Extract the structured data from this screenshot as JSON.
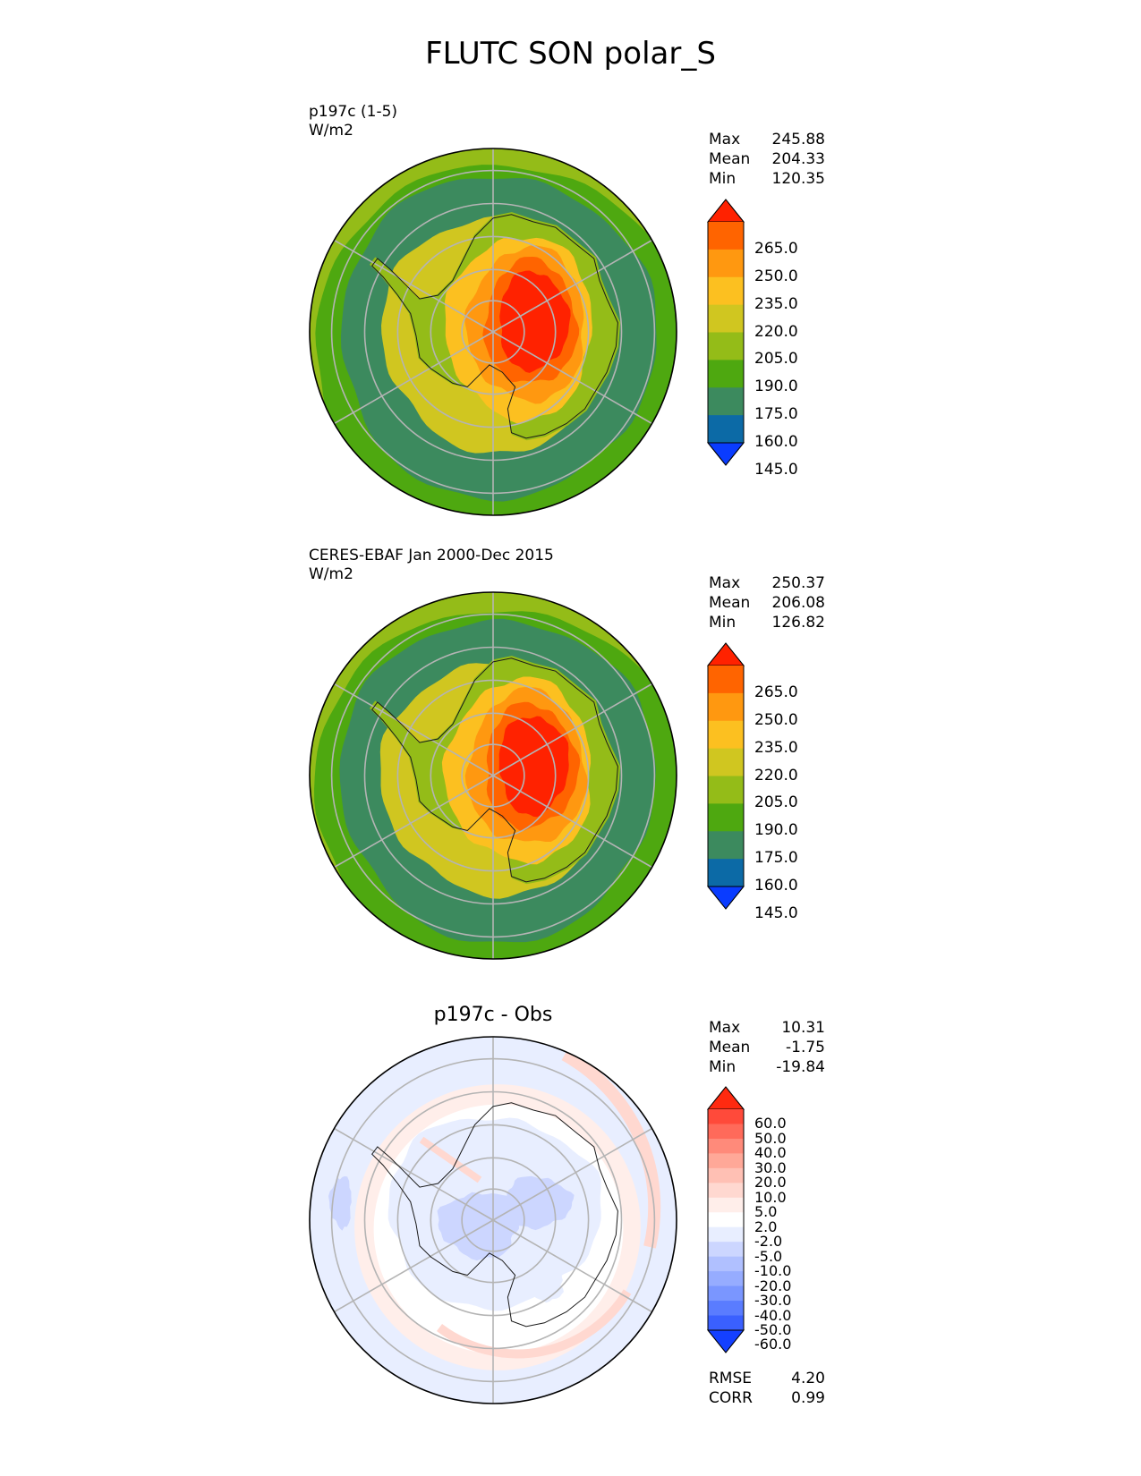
{
  "figure": {
    "title": "FLUTC SON polar_S"
  },
  "chart_data": [
    {
      "type": "heatmap",
      "projection": "south-polar-stereographic",
      "title_lines": [
        "p197c (1-5)",
        "W/m2"
      ],
      "stats": [
        {
          "label": "Max",
          "value": "245.88"
        },
        {
          "label": "Mean",
          "value": "204.33"
        },
        {
          "label": "Min",
          "value": "120.35"
        }
      ],
      "colorbar": {
        "ticks": [
          "265.0",
          "250.0",
          "235.0",
          "220.0",
          "205.0",
          "190.0",
          "175.0",
          "160.0",
          "145.0"
        ],
        "colors": [
          "#ff2200",
          "#ff6400",
          "#ff9810",
          "#fcc020",
          "#d0c620",
          "#94bc18",
          "#4ea810",
          "#3c8a5e",
          "#0c6aa6",
          "#0a3cff"
        ],
        "extend": "both"
      },
      "fields": {
        "ocean_north": 5,
        "ocean_south": 6,
        "rim": 7,
        "ice_margin": 4,
        "plateau": 1,
        "core": 0
      }
    },
    {
      "type": "heatmap",
      "projection": "south-polar-stereographic",
      "title_lines": [
        "CERES-EBAF Jan 2000-Dec 2015",
        "W/m2"
      ],
      "stats": [
        {
          "label": "Max",
          "value": "250.37"
        },
        {
          "label": "Mean",
          "value": "206.08"
        },
        {
          "label": "Min",
          "value": "126.82"
        }
      ],
      "colorbar": {
        "ticks": [
          "265.0",
          "250.0",
          "235.0",
          "220.0",
          "205.0",
          "190.0",
          "175.0",
          "160.0",
          "145.0"
        ],
        "colors": [
          "#ff2200",
          "#ff6400",
          "#ff9810",
          "#fcc020",
          "#d0c620",
          "#94bc18",
          "#4ea810",
          "#3c8a5e",
          "#0c6aa6",
          "#0a3cff"
        ],
        "extend": "both"
      },
      "fields": {
        "ocean_north": 5,
        "ocean_south": 6,
        "rim": 7,
        "ice_margin": 4,
        "plateau": 1,
        "core": 0
      }
    },
    {
      "type": "heatmap",
      "projection": "south-polar-stereographic",
      "title": "p197c - Obs",
      "stats": [
        {
          "label": "Max",
          "value": "10.31"
        },
        {
          "label": "Mean",
          "value": "-1.75"
        },
        {
          "label": "Min",
          "value": "-19.84"
        }
      ],
      "colorbar": {
        "ticks": [
          "60.0",
          "50.0",
          "40.0",
          "30.0",
          "20.0",
          "10.0",
          "5.0",
          "2.0",
          "-2.0",
          "-5.0",
          "-10.0",
          "-20.0",
          "-30.0",
          "-40.0",
          "-50.0",
          "-60.0"
        ],
        "colors": [
          "#ff2a10",
          "#ff4a3a",
          "#ff6a5a",
          "#ff8a7a",
          "#ffa898",
          "#ffc0b4",
          "#ffd8d0",
          "#ffeeea",
          "#ffffff",
          "#e8eeff",
          "#ccd6ff",
          "#b0c0ff",
          "#96acff",
          "#7a96ff",
          "#5a7cff",
          "#3a60ff",
          "#1440ff"
        ],
        "extend": "both"
      },
      "extra_stats": [
        {
          "label": "RMSE",
          "value": "4.20"
        },
        {
          "label": "CORR",
          "value": "0.99"
        }
      ]
    }
  ]
}
